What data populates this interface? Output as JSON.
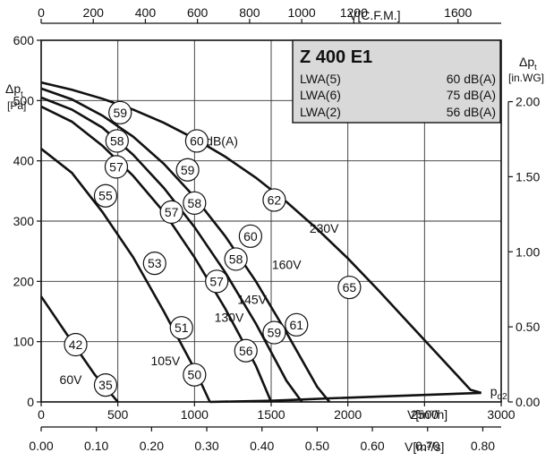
{
  "chart_data": {
    "type": "line",
    "title": "Z 400 E1",
    "x_axis": {
      "label": "V[m³/h]",
      "range": [
        0,
        3000
      ],
      "ticks": [
        0,
        500,
        1000,
        1500,
        2000,
        2500,
        3000
      ]
    },
    "x_axis_top": {
      "label": "V[C.F.M.]",
      "range": [
        0,
        1765
      ],
      "ticks": [
        0,
        200,
        400,
        600,
        800,
        1000,
        1200,
        1600
      ],
      "tick_labels": [
        "0",
        "200",
        "400",
        "600",
        "800",
        "1000",
        "1200",
        "1600"
      ]
    },
    "x_axis_bottom2": {
      "label": "V[m³/s]",
      "range": [
        0,
        0.8333
      ],
      "ticks": [
        0,
        0.1,
        0.2,
        0.3,
        0.4,
        0.5,
        0.6,
        0.7,
        0.8
      ],
      "tick_labels": [
        "0.00",
        "0.10",
        "0.20",
        "0.30",
        "0.40",
        "0.50",
        "0.60",
        "0.70",
        "0.80"
      ]
    },
    "y_axis": {
      "label_main": "Δp",
      "label_sub": "t",
      "unit": "[Pa]",
      "range": [
        0,
        600
      ],
      "ticks": [
        0,
        100,
        200,
        300,
        400,
        500,
        600
      ]
    },
    "y_axis_right": {
      "label_main": "Δp",
      "label_sub": "t",
      "unit": "[in.WG]",
      "range": [
        0,
        2.409
      ],
      "ticks": [
        0,
        0.5,
        1.0,
        1.5,
        2.0
      ],
      "tick_labels": [
        "0.00",
        "0.50",
        "1.00",
        "1.50",
        "2.00"
      ]
    },
    "grid": true,
    "info_box": {
      "title": "Z 400 E1",
      "rows": [
        {
          "label": "LWA(5)",
          "value": "60 dB(A)"
        },
        {
          "label": "LWA(6)",
          "value": "75 dB(A)"
        },
        {
          "label": "LWA(2)",
          "value": "56 dB(A)"
        }
      ]
    },
    "series": [
      {
        "name": "60V",
        "x": [
          0,
          200,
          350,
          500
        ],
        "y": [
          175,
          100,
          45,
          0
        ]
      },
      {
        "name": "105V",
        "x": [
          0,
          200,
          400,
          600,
          800,
          1000,
          1100
        ],
        "y": [
          420,
          380,
          315,
          240,
          150,
          55,
          0
        ]
      },
      {
        "name": "130V",
        "x": [
          0,
          200,
          400,
          600,
          800,
          1000,
          1200,
          1400,
          1500
        ],
        "y": [
          490,
          465,
          425,
          375,
          315,
          240,
          155,
          60,
          0
        ]
      },
      {
        "name": "145V",
        "x": [
          0,
          200,
          400,
          600,
          800,
          1000,
          1200,
          1400,
          1600,
          1700
        ],
        "y": [
          505,
          485,
          455,
          410,
          355,
          290,
          215,
          130,
          35,
          0
        ]
      },
      {
        "name": "160V",
        "x": [
          0,
          200,
          400,
          600,
          800,
          1000,
          1200,
          1400,
          1600,
          1800,
          1880
        ],
        "y": [
          520,
          502,
          475,
          440,
          395,
          340,
          275,
          200,
          115,
          25,
          0
        ]
      },
      {
        "name": "230V",
        "x": [
          0,
          200,
          400,
          600,
          800,
          1000,
          1200,
          1400,
          1600,
          1800,
          2000,
          2200,
          2400,
          2600,
          2800,
          2870
        ],
        "y": [
          530,
          518,
          503,
          485,
          463,
          437,
          407,
          372,
          332,
          287,
          238,
          185,
          130,
          75,
          20,
          15
        ]
      }
    ],
    "pd2_line": {
      "x": [
        1100,
        1500,
        1700,
        1880,
        2870
      ],
      "y": [
        0,
        2,
        4,
        6,
        15
      ],
      "label": "p",
      "label_sub": "d2"
    },
    "noise_badges": [
      {
        "text": "59",
        "x": 515,
        "y": 480
      },
      {
        "text": "60",
        "x": 1015,
        "y": 433
      },
      {
        "text": "58",
        "x": 495,
        "y": 433
      },
      {
        "text": "59",
        "x": 955,
        "y": 385
      },
      {
        "text": "57",
        "x": 490,
        "y": 390
      },
      {
        "text": "55",
        "x": 420,
        "y": 342
      },
      {
        "text": "62",
        "x": 1520,
        "y": 335
      },
      {
        "text": "58",
        "x": 1000,
        "y": 330
      },
      {
        "text": "57",
        "x": 850,
        "y": 315
      },
      {
        "text": "60",
        "x": 1365,
        "y": 275
      },
      {
        "text": "53",
        "x": 740,
        "y": 230
      },
      {
        "text": "58",
        "x": 1270,
        "y": 237
      },
      {
        "text": "57",
        "x": 1145,
        "y": 200
      },
      {
        "text": "65",
        "x": 2010,
        "y": 190
      },
      {
        "text": "51",
        "x": 915,
        "y": 123
      },
      {
        "text": "61",
        "x": 1665,
        "y": 128
      },
      {
        "text": "59",
        "x": 1520,
        "y": 115
      },
      {
        "text": "56",
        "x": 1335,
        "y": 85
      },
      {
        "text": "42",
        "x": 225,
        "y": 95
      },
      {
        "text": "50",
        "x": 1000,
        "y": 45
      },
      {
        "text": "35",
        "x": 420,
        "y": 28
      }
    ],
    "annotations": [
      {
        "text": "dB(A)",
        "x": 1075,
        "y": 433
      },
      {
        "text": "230V",
        "x": 1750,
        "y": 288
      },
      {
        "text": "160V",
        "x": 1505,
        "y": 228
      },
      {
        "text": "145V",
        "x": 1280,
        "y": 170
      },
      {
        "text": "130V",
        "x": 1130,
        "y": 140
      },
      {
        "text": "105V",
        "x": 715,
        "y": 68
      },
      {
        "text": "60V",
        "x": 120,
        "y": 37
      }
    ]
  }
}
